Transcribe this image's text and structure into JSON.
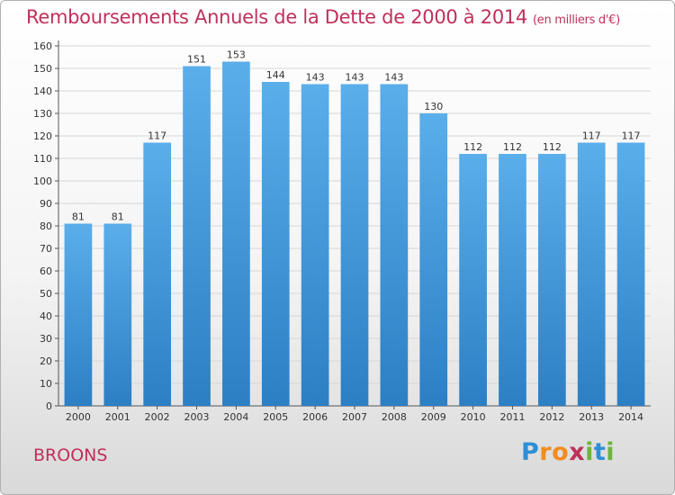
{
  "header": {
    "title": "Remboursements Annuels de la Dette de 2000 à 2014",
    "unit": "(en milliers d'€)"
  },
  "footer": {
    "commune": "BROONS",
    "logo": {
      "letters": [
        "P",
        "r",
        "o",
        "x",
        "i",
        "t",
        "i"
      ],
      "colors": [
        "#2e8fd8",
        "#f28c1e",
        "#f28c1e",
        "#c0305a",
        "#6db33f",
        "#2e8fd8",
        "#6db33f"
      ]
    }
  },
  "colors": {
    "bar_light": "#5aaeea",
    "bar_dark": "#2c7fc4",
    "grid": "#d6d6d6",
    "axis": "#555555",
    "text": "#333333",
    "title": "#c0305a"
  },
  "chart_data": {
    "type": "bar",
    "categories": [
      "2000",
      "2001",
      "2002",
      "2003",
      "2004",
      "2005",
      "2006",
      "2007",
      "2008",
      "2009",
      "2010",
      "2011",
      "2012",
      "2013",
      "2014"
    ],
    "values": [
      81,
      81,
      117,
      151,
      153,
      144,
      143,
      143,
      143,
      130,
      112,
      112,
      112,
      117,
      117
    ],
    "data_labels": [
      "81",
      "81",
      "117",
      "151",
      "153",
      "144",
      "143",
      "143",
      "143",
      "130",
      "112",
      "112",
      "112",
      "117",
      "117"
    ],
    "ylim": [
      0,
      160
    ],
    "yticks": [
      0,
      10,
      20,
      30,
      40,
      50,
      60,
      70,
      80,
      90,
      100,
      110,
      120,
      130,
      140,
      150,
      160
    ],
    "ytick_labels": [
      "0",
      "10",
      "20",
      "30",
      "40",
      "50",
      "60",
      "70",
      "80",
      "90",
      "100",
      "110",
      "120",
      "130",
      "140",
      "150",
      "160"
    ],
    "grid": true,
    "xlabel": "",
    "ylabel": ""
  }
}
